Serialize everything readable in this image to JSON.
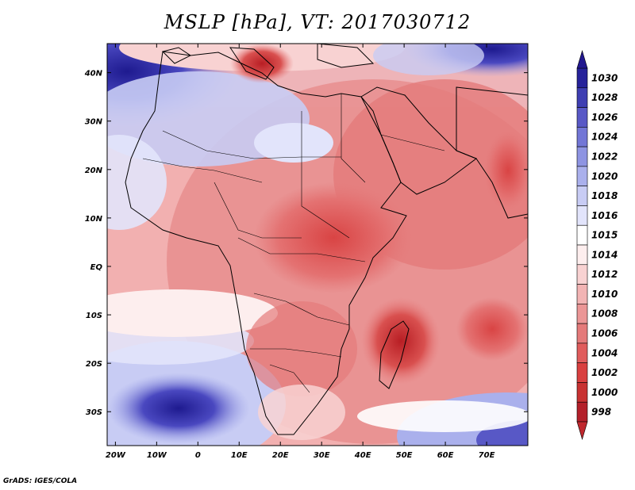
{
  "title": "MSLP [hPa], VT: 2017030712",
  "credit": "GrADS: IGES/COLA",
  "map": {
    "lon_labels": [
      "20W",
      "10W",
      "0",
      "10E",
      "20E",
      "30E",
      "40E",
      "50E",
      "60E",
      "70E"
    ],
    "lat_labels": [
      "40N",
      "30N",
      "20N",
      "10N",
      "EQ",
      "10S",
      "20S",
      "30S"
    ],
    "lon_range": [
      -22,
      80
    ],
    "lat_range": [
      -37,
      46
    ],
    "colorbar_levels": [
      "998",
      "1000",
      "1002",
      "1004",
      "1006",
      "1008",
      "1010",
      "1012",
      "1014",
      "1015",
      "1016",
      "1018",
      "1020",
      "1022",
      "1024",
      "1026",
      "1028",
      "1030"
    ],
    "colorbar_colors": [
      "#b3202a",
      "#c83232",
      "#d94040",
      "#e05c5c",
      "#e47a7a",
      "#eb9696",
      "#f2b4b4",
      "#f8d2d2",
      "#fdeeee",
      "#ffffff",
      "#e2e4fb",
      "#c8ccf4",
      "#aab0ec",
      "#8e94e2",
      "#7276d6",
      "#5858c6",
      "#3e3eb2",
      "#26229a"
    ],
    "accent_low": "#c0282e",
    "accent_high": "#22188f"
  }
}
